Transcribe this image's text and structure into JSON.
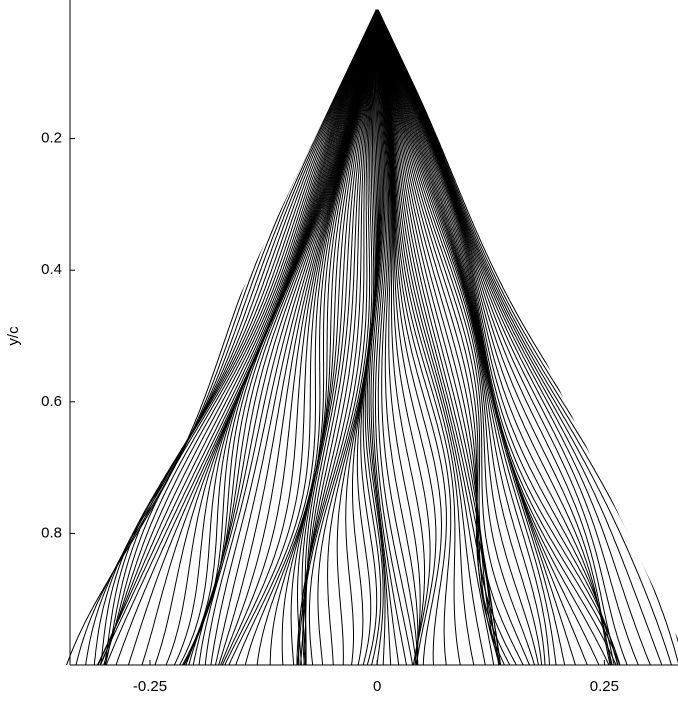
{
  "chart_data": {
    "type": "streamline",
    "y_label": "y/c",
    "xlim": [
      -0.338,
      0.331
    ],
    "xticks": [
      -0.25,
      0,
      0.25
    ],
    "ylim": [
      0,
      1
    ],
    "y_reversed": true,
    "yticks": [
      0.2,
      0.4,
      0.6,
      0.8
    ],
    "color": "#000000",
    "grid": false
  }
}
